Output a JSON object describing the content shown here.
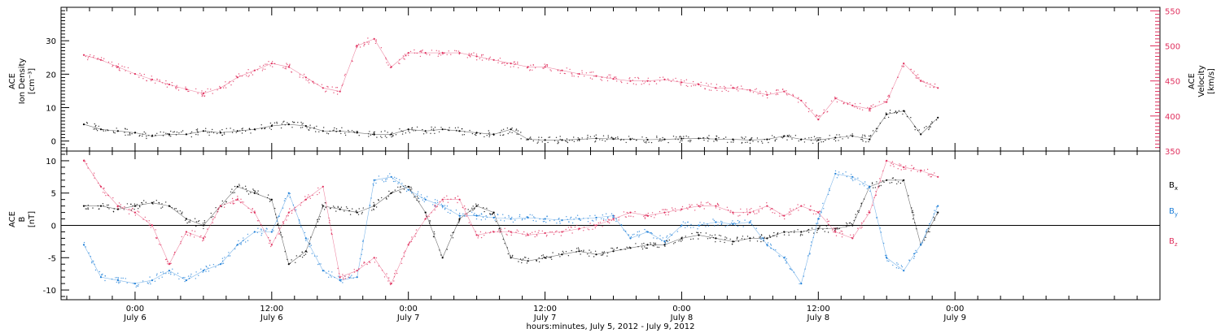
{
  "chart_data": [
    {
      "type": "scatter",
      "panel": "top",
      "left_axis": {
        "label_lines": [
          "ACE",
          "Ion Density",
          "[cm⁻³]"
        ],
        "ylim": [
          -3,
          40
        ],
        "ticks": [
          0,
          10,
          20,
          30
        ],
        "color": "#000000"
      },
      "right_axis": {
        "label_lines": [
          "ACE",
          "Velocity",
          "[km/s]"
        ],
        "ylim": [
          350,
          555
        ],
        "ticks": [
          350,
          400,
          450,
          500,
          550
        ],
        "color": "#e0305e"
      },
      "series": [
        {
          "axis": "left",
          "color": "#000000",
          "x": [
            -4.5,
            -3,
            -1.5,
            0,
            1.5,
            3,
            4.5,
            6,
            7.5,
            9,
            10.5,
            12,
            13.5,
            15,
            16.5,
            18,
            19.5,
            21,
            22.5,
            24,
            25.5,
            27,
            28.5,
            30,
            31.5,
            33,
            34.5,
            36,
            37.5,
            39,
            40.5,
            42,
            43.5,
            45,
            46.5,
            48,
            49.5,
            51,
            52.5,
            54,
            55.5,
            57,
            58.5,
            60,
            61.5,
            63,
            64.5,
            66,
            67.5,
            69,
            70.5
          ],
          "values": [
            5,
            3.5,
            3,
            2.5,
            1.5,
            2,
            2,
            3,
            2.5,
            3,
            3.5,
            4.5,
            5,
            4.5,
            3,
            3,
            2.5,
            2,
            2,
            3.5,
            3,
            3.5,
            3,
            2.5,
            2,
            3.5,
            0.5,
            0.3,
            0.3,
            0.5,
            0.8,
            0.6,
            0.5,
            0.4,
            0.5,
            0.7,
            0.8,
            0.6,
            0.5,
            0.3,
            0.5,
            1.5,
            0.5,
            0.3,
            1,
            1.5,
            0.5,
            8,
            9,
            2,
            7
          ]
        },
        {
          "axis": "right",
          "color": "#e0305e",
          "x": [
            -4.5,
            -3,
            -1.5,
            0,
            1.5,
            3,
            4.5,
            6,
            7.5,
            9,
            10.5,
            12,
            13.5,
            15,
            16.5,
            18,
            19.5,
            21,
            22.5,
            24,
            25.5,
            27,
            28.5,
            30,
            31.5,
            33,
            34.5,
            36,
            37.5,
            39,
            40.5,
            42,
            43.5,
            45,
            46.5,
            48,
            49.5,
            51,
            52.5,
            54,
            55.5,
            57,
            58.5,
            60,
            61.5,
            63,
            64.5,
            66,
            67.5,
            69,
            70.5
          ],
          "values": [
            487,
            480,
            470,
            460,
            452,
            445,
            438,
            432,
            440,
            455,
            465,
            475,
            470,
            455,
            440,
            435,
            500,
            510,
            470,
            490,
            490,
            490,
            490,
            485,
            480,
            475,
            470,
            470,
            465,
            460,
            457,
            453,
            450,
            450,
            452,
            448,
            445,
            440,
            440,
            437,
            430,
            435,
            422,
            395,
            425,
            415,
            410,
            420,
            475,
            450,
            440
          ]
        }
      ]
    },
    {
      "type": "scatter",
      "panel": "bottom",
      "left_axis": {
        "label_lines": [
          "ACE",
          "B",
          "[nT]"
        ],
        "ylim": [
          -11.5,
          11.5
        ],
        "ticks": [
          -10,
          -5,
          0,
          5,
          10
        ],
        "color": "#000000"
      },
      "zero_line": true,
      "legend_position": "right",
      "series": [
        {
          "name": "Bx",
          "legend_main": "B",
          "legend_sub": "x",
          "color": "#000000",
          "x": [
            -4.5,
            -3,
            -1.5,
            0,
            1.5,
            3,
            4.5,
            6,
            7.5,
            9,
            10.5,
            12,
            13.5,
            15,
            16.5,
            18,
            19.5,
            21,
            22.5,
            24,
            25.5,
            27,
            28.5,
            30,
            31.5,
            33,
            34.5,
            36,
            37.5,
            39,
            40.5,
            42,
            43.5,
            45,
            46.5,
            48,
            49.5,
            51,
            52.5,
            54,
            55.5,
            57,
            58.5,
            60,
            61.5,
            63,
            64.5,
            66,
            67.5,
            69,
            70.5
          ],
          "values": [
            3,
            3,
            2.5,
            3,
            3.5,
            3,
            1,
            0,
            3,
            6,
            5,
            4,
            -6,
            -4,
            3,
            2.5,
            2,
            3,
            5,
            6,
            2,
            -5,
            1,
            3,
            2,
            -5,
            -5.5,
            -5,
            -4.5,
            -4,
            -4.5,
            -4,
            -3.5,
            -3,
            -3,
            -2,
            -1.5,
            -2,
            -2.5,
            -2,
            -2,
            -1,
            -1,
            -0.5,
            -0.5,
            0,
            6,
            7,
            7,
            -3,
            2
          ]
        },
        {
          "name": "By",
          "legend_main": "B",
          "legend_sub": "y",
          "color": "#1e7fd8",
          "x": [
            -4.5,
            -3,
            -1.5,
            0,
            1.5,
            3,
            4.5,
            6,
            7.5,
            9,
            10.5,
            12,
            13.5,
            15,
            16.5,
            18,
            19.5,
            21,
            22.5,
            24,
            25.5,
            27,
            28.5,
            30,
            31.5,
            33,
            34.5,
            36,
            37.5,
            39,
            40.5,
            42,
            43.5,
            45,
            46.5,
            48,
            49.5,
            51,
            52.5,
            54,
            55.5,
            57,
            58.5,
            60,
            61.5,
            63,
            64.5,
            66,
            67.5,
            69,
            70.5
          ],
          "values": [
            -3,
            -8,
            -8.5,
            -9,
            -8.5,
            -7,
            -8.5,
            -7,
            -6,
            -3,
            -1,
            -1,
            5,
            -2,
            -7,
            -8.5,
            -8,
            7,
            7.5,
            5.5,
            4,
            3,
            1.5,
            1.5,
            1.2,
            1,
            1.2,
            1,
            0.8,
            1,
            1.2,
            1.5,
            -2,
            -1,
            -2.5,
            0,
            0,
            0.5,
            0.2,
            0.5,
            -3,
            -5,
            -9,
            1,
            8,
            7.5,
            6,
            -5,
            -7,
            -3,
            3
          ]
        },
        {
          "name": "Bz",
          "legend_main": "B",
          "legend_sub": "z",
          "color": "#e0305e",
          "x": [
            -4.5,
            -3,
            -1.5,
            0,
            1.5,
            3,
            4.5,
            6,
            7.5,
            9,
            10.5,
            12,
            13.5,
            15,
            16.5,
            18,
            19.5,
            21,
            22.5,
            24,
            25.5,
            27,
            28.5,
            30,
            31.5,
            33,
            34.5,
            36,
            37.5,
            39,
            40.5,
            42,
            43.5,
            45,
            46.5,
            48,
            49.5,
            51,
            52.5,
            54,
            55.5,
            57,
            58.5,
            60,
            61.5,
            63,
            64.5,
            66,
            67.5,
            69,
            70.5
          ],
          "values": [
            10,
            6,
            3,
            2,
            0,
            -6,
            -1,
            -2,
            3,
            4,
            2,
            -3,
            2,
            4,
            6,
            -8,
            -7,
            -5,
            -9,
            -3,
            1,
            4,
            4,
            -1.5,
            -1,
            -1,
            -1.5,
            -1.2,
            -1,
            -0.5,
            0,
            1,
            2,
            1.5,
            2,
            2.5,
            3,
            3,
            2,
            2,
            3,
            1.5,
            3,
            2,
            -1,
            -2,
            2,
            10,
            9,
            8.5,
            7.5
          ]
        }
      ]
    }
  ],
  "x_axis": {
    "xlim": [
      -6.5,
      90
    ],
    "ticks": [
      {
        "x": 0,
        "time": "0:00",
        "date": "July 6"
      },
      {
        "x": 12,
        "time": "12:00",
        "date": "July 6"
      },
      {
        "x": 24,
        "time": "0:00",
        "date": "July 7"
      },
      {
        "x": 36,
        "time": "12:00",
        "date": "July 7"
      },
      {
        "x": 48,
        "time": "0:00",
        "date": "July 8"
      },
      {
        "x": 60,
        "time": "12:00",
        "date": "July 8"
      },
      {
        "x": 72,
        "time": "0:00",
        "date": "July 9"
      }
    ],
    "xlabel": "hours:minutes,  July  5, 2012  -  July  9, 2012"
  }
}
